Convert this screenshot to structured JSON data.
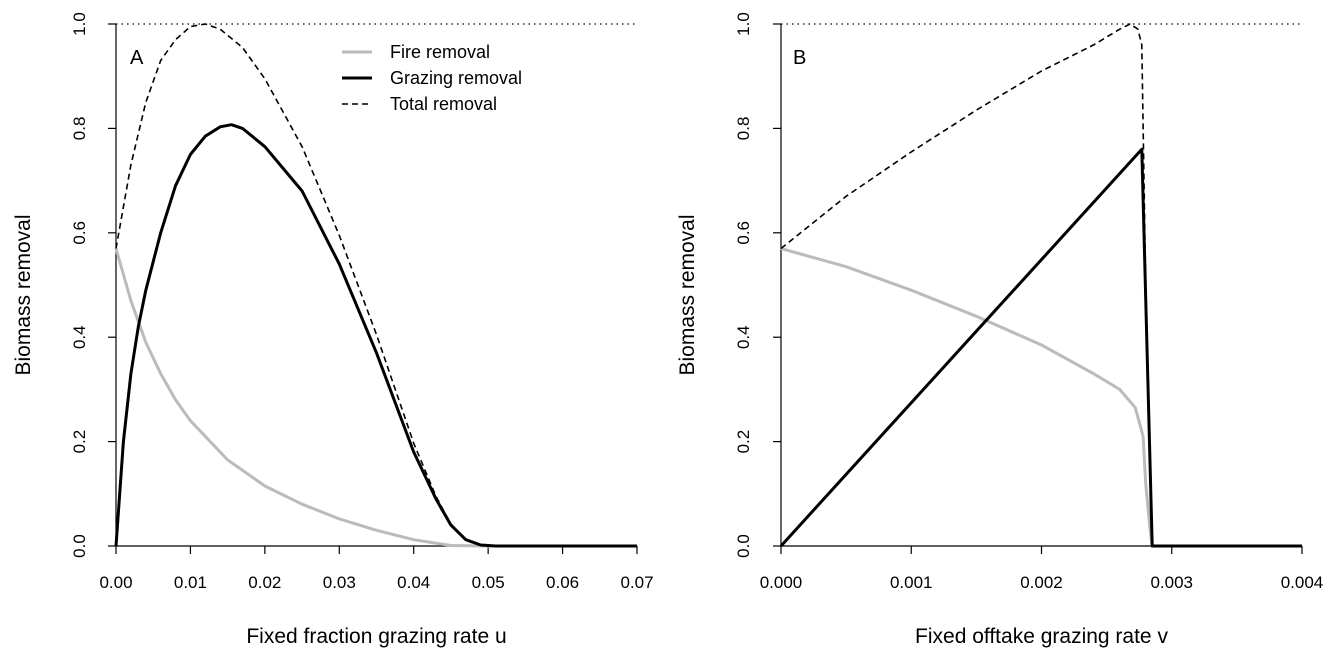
{
  "chart_data": [
    {
      "type": "line",
      "panel_label": "A",
      "xlabel": "Fixed fraction grazing rate u",
      "ylabel": "Biomass removal",
      "xlim": [
        0,
        0.07
      ],
      "ylim": [
        0,
        1.0
      ],
      "x_ticks": [
        "0.00",
        "0.01",
        "0.02",
        "0.03",
        "0.04",
        "0.05",
        "0.06",
        "0.07"
      ],
      "y_ticks": [
        "0.0",
        "0.2",
        "0.4",
        "0.6",
        "0.8",
        "1.0"
      ],
      "reference_line": {
        "y": 1.0,
        "style": "dotted"
      },
      "legend_position": "top-center",
      "series": [
        {
          "name": "Fire removal",
          "color": "#bbbbbb",
          "style": "solid",
          "x": [
            0,
            0.002,
            0.004,
            0.006,
            0.008,
            0.01,
            0.015,
            0.02,
            0.025,
            0.03,
            0.035,
            0.04,
            0.045,
            0.05,
            0.07
          ],
          "y": [
            0.57,
            0.47,
            0.39,
            0.33,
            0.28,
            0.24,
            0.165,
            0.115,
            0.08,
            0.052,
            0.03,
            0.012,
            0.001,
            0,
            0
          ]
        },
        {
          "name": "Grazing removal",
          "color": "#000000",
          "style": "solid",
          "x": [
            0,
            0.001,
            0.002,
            0.003,
            0.004,
            0.006,
            0.008,
            0.01,
            0.012,
            0.014,
            0.0155,
            0.017,
            0.02,
            0.025,
            0.03,
            0.035,
            0.04,
            0.043,
            0.045,
            0.047,
            0.049,
            0.051,
            0.07
          ],
          "y": [
            0,
            0.2,
            0.33,
            0.42,
            0.49,
            0.6,
            0.69,
            0.75,
            0.785,
            0.803,
            0.807,
            0.8,
            0.765,
            0.68,
            0.54,
            0.37,
            0.18,
            0.09,
            0.04,
            0.012,
            0.002,
            0,
            0
          ]
        },
        {
          "name": "Total removal",
          "color": "#000000",
          "style": "dashed",
          "x": [
            0,
            0.002,
            0.004,
            0.006,
            0.008,
            0.01,
            0.012,
            0.014,
            0.017,
            0.02,
            0.025,
            0.03,
            0.035,
            0.04,
            0.043,
            0.045,
            0.047,
            0.049,
            0.051,
            0.07
          ],
          "y": [
            0.57,
            0.73,
            0.85,
            0.93,
            0.97,
            0.995,
            1.0,
            0.99,
            0.955,
            0.895,
            0.765,
            0.595,
            0.405,
            0.197,
            0.095,
            0.042,
            0.013,
            0.002,
            0,
            0
          ]
        }
      ]
    },
    {
      "type": "line",
      "panel_label": "B",
      "xlabel": "Fixed offtake grazing rate v",
      "ylabel": "Biomass removal",
      "xlim": [
        0,
        0.004
      ],
      "ylim": [
        0,
        1.0
      ],
      "x_ticks": [
        "0.000",
        "0.001",
        "0.002",
        "0.003",
        "0.004"
      ],
      "y_ticks": [
        "0.0",
        "0.2",
        "0.4",
        "0.6",
        "0.8",
        "1.0"
      ],
      "reference_line": {
        "y": 1.0,
        "style": "dotted"
      },
      "series": [
        {
          "name": "Fire removal",
          "color": "#bbbbbb",
          "style": "solid",
          "x": [
            0,
            0.0005,
            0.001,
            0.0015,
            0.002,
            0.0024,
            0.0026,
            0.00272,
            0.00278,
            0.0028,
            0.00283,
            0.00285,
            0.004
          ],
          "y": [
            0.57,
            0.535,
            0.49,
            0.44,
            0.385,
            0.33,
            0.3,
            0.265,
            0.21,
            0.12,
            0.04,
            0,
            0
          ]
        },
        {
          "name": "Grazing removal",
          "color": "#000000",
          "style": "solid",
          "x": [
            0,
            0.00277,
            0.00285,
            0.004
          ],
          "y": [
            0,
            0.76,
            0,
            0
          ]
        },
        {
          "name": "Total removal",
          "color": "#000000",
          "style": "dashed",
          "x": [
            0,
            0.0005,
            0.001,
            0.0015,
            0.002,
            0.0024,
            0.0026,
            0.00268,
            0.00274,
            0.00277,
            0.0028,
            0.00285
          ],
          "y": [
            0.57,
            0.67,
            0.755,
            0.835,
            0.91,
            0.96,
            0.99,
            1.0,
            0.99,
            0.96,
            0.5,
            0
          ]
        }
      ]
    }
  ]
}
